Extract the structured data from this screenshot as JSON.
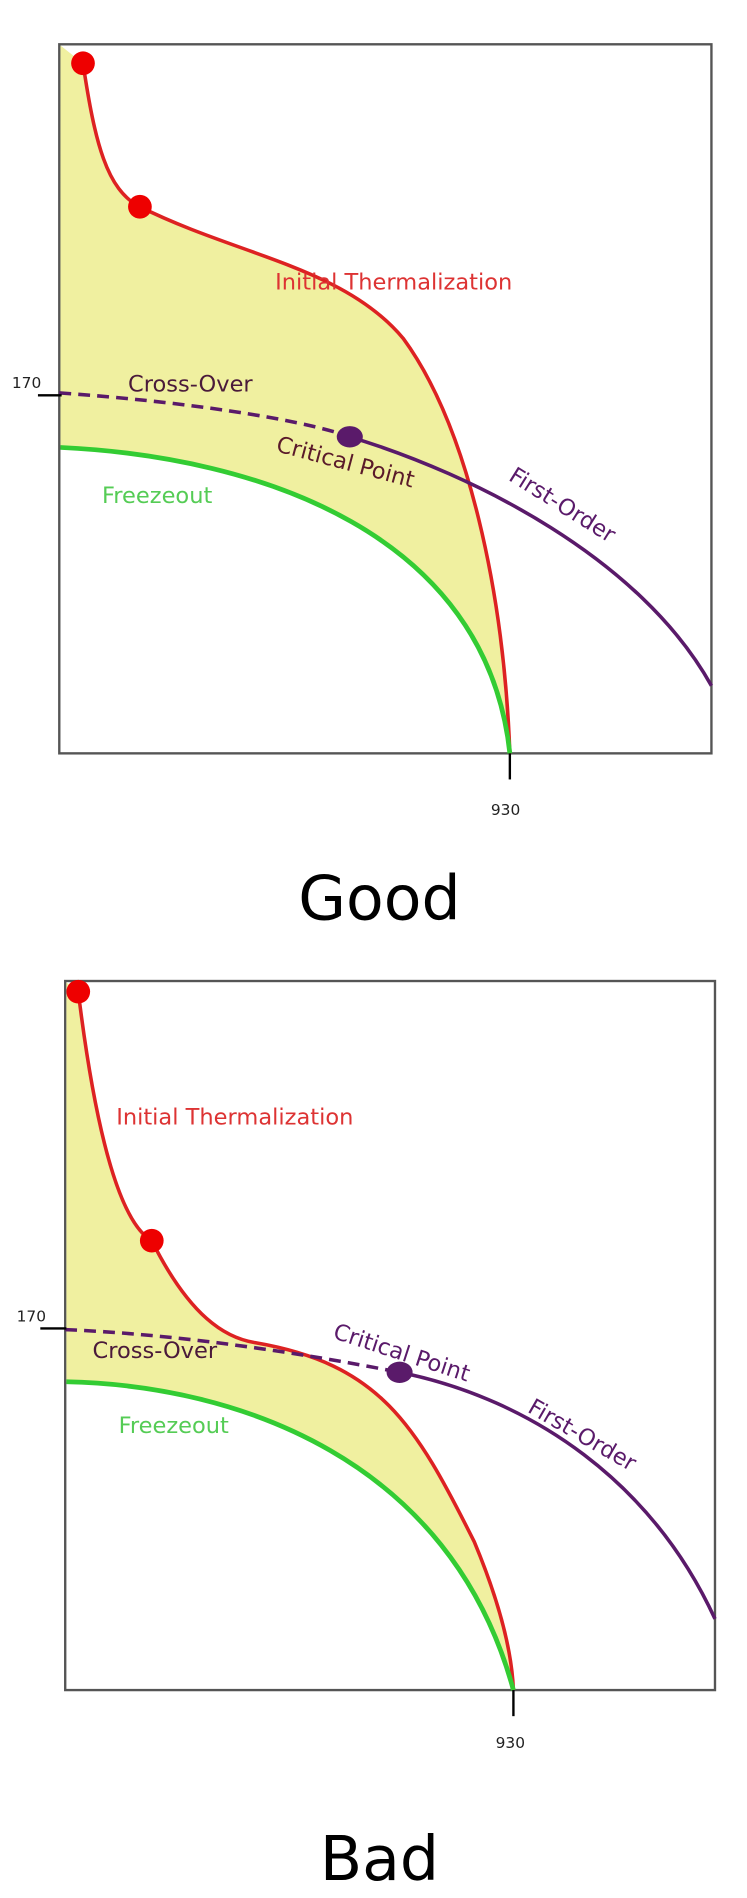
{
  "panels": [
    {
      "y_tick": "170",
      "x_tick": "930",
      "initial": "Initial Thermalization",
      "crossover": "Cross-Over",
      "critical": "Critical Point",
      "first_order": "First-Order",
      "freezeout": "Freezeout",
      "caption": "Good"
    },
    {
      "y_tick": "170",
      "x_tick": "930",
      "initial": "Initial Thermalization",
      "crossover": "Cross-Over",
      "critical": "Critical Point",
      "first_order": "First-Order",
      "freezeout": "Freezeout",
      "caption": "Bad"
    }
  ]
}
